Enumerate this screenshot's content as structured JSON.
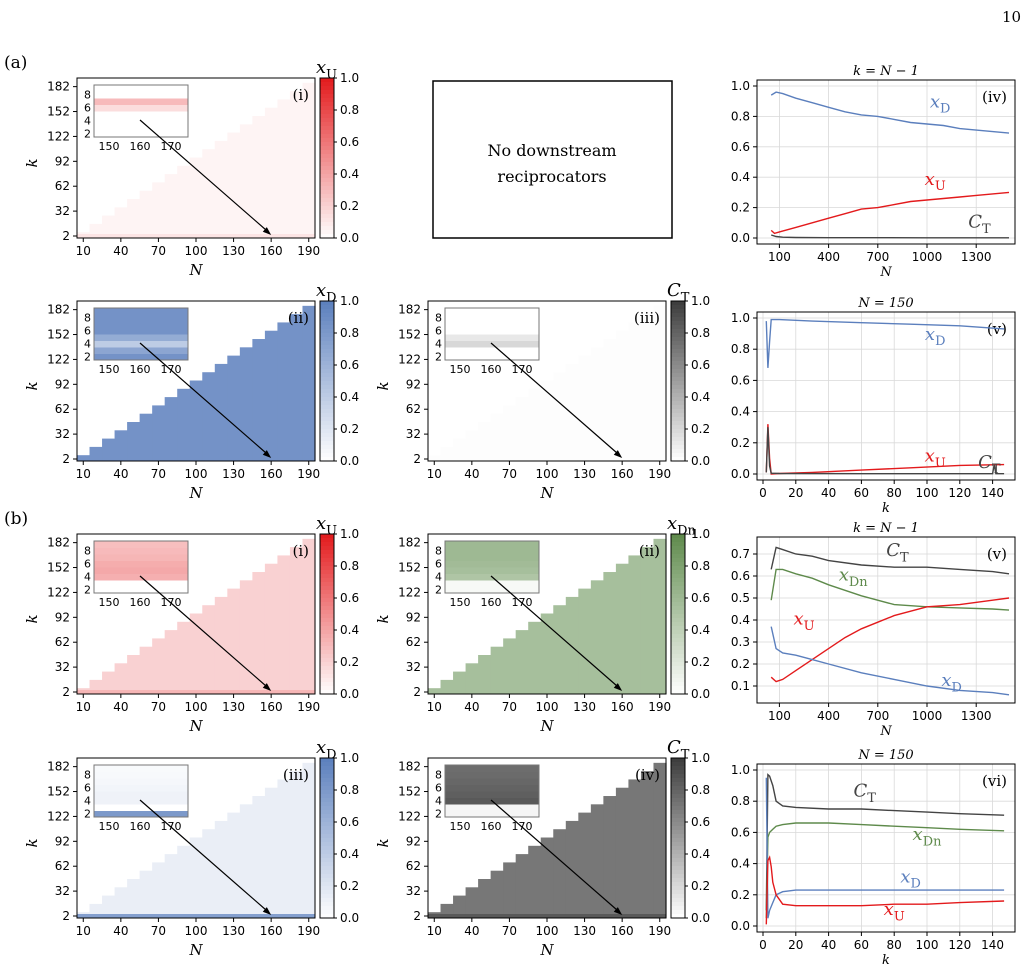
{
  "page_number": "10",
  "panel_a_label": "(a)",
  "panel_b_label": "(b)",
  "no_downstream_text_1": "No downstream",
  "no_downstream_text_2": "reciprocators",
  "colors": {
    "red": "#e31a1c",
    "blue": "#5b7fbd",
    "green": "#5e8a4b",
    "gray": "#444444",
    "black": "#000000"
  },
  "chart_data": [
    {
      "id": "a-i",
      "type": "heatmap",
      "tag": "(i)",
      "colorbar_label": "x_U",
      "cmap": "red",
      "heat": 0.05,
      "low_rows": [
        [
          2,
          0.12
        ]
      ],
      "ticks_x": [
        "10",
        "40",
        "70",
        "100",
        "130",
        "160",
        "190"
      ],
      "ticks_y": [
        "2",
        "32",
        "62",
        "92",
        "122",
        "152",
        "182"
      ],
      "xlabel": "N",
      "ylabel": "k",
      "cbar_ticks": [
        "0.0",
        "0.2",
        "0.4",
        "0.6",
        "0.8",
        "1.0"
      ],
      "inset": {
        "x_ticks": [
          "150",
          "160",
          "170"
        ],
        "y_ticks": [
          "2",
          "4",
          "6",
          "8"
        ],
        "rows": [
          0.0,
          0.0,
          0.0,
          0.0,
          0.15,
          0.3,
          0.0,
          0.0
        ]
      }
    },
    {
      "id": "a-ii",
      "type": "heatmap",
      "tag": "(ii)",
      "colorbar_label": "x_D",
      "cmap": "blue",
      "heat": 0.85,
      "low_rows": [],
      "ticks_x": [
        "10",
        "40",
        "70",
        "100",
        "130",
        "160",
        "190"
      ],
      "ticks_y": [
        "2",
        "32",
        "62",
        "92",
        "122",
        "152",
        "182"
      ],
      "xlabel": "N",
      "ylabel": "k",
      "cbar_ticks": [
        "0.0",
        "0.2",
        "0.4",
        "0.6",
        "0.8",
        "1.0"
      ],
      "inset": {
        "x_ticks": [
          "150",
          "160",
          "170"
        ],
        "y_ticks": [
          "2",
          "4",
          "6",
          "8"
        ],
        "rows": [
          0.85,
          0.7,
          0.4,
          0.65,
          0.85,
          0.85,
          0.85,
          0.85
        ]
      }
    },
    {
      "id": "a-iii",
      "type": "heatmap",
      "tag": "(iii)",
      "colorbar_label": "C_T",
      "cmap": "gray",
      "heat": 0.01,
      "low_rows": [],
      "ticks_x": [
        "10",
        "40",
        "70",
        "100",
        "130",
        "160",
        "190"
      ],
      "ticks_y": [
        "2",
        "32",
        "62",
        "92",
        "122",
        "152",
        "182"
      ],
      "xlabel": "N",
      "ylabel": "k",
      "cbar_ticks": [
        "0.0",
        "0.2",
        "0.4",
        "0.6",
        "0.8",
        "1.0"
      ],
      "inset": {
        "x_ticks": [
          "150",
          "160",
          "170"
        ],
        "y_ticks": [
          "2",
          "4",
          "6",
          "8"
        ],
        "rows": [
          0.0,
          0.0,
          0.2,
          0.12,
          0.0,
          0.0,
          0.0,
          0.0
        ]
      }
    },
    {
      "id": "a-iv",
      "type": "line",
      "tag": "(iv)",
      "title": "k = N − 1",
      "xlabel": "N",
      "ylabel": "",
      "xlim": [
        0,
        1500
      ],
      "ylim": [
        0,
        1
      ],
      "x_ticks": [
        100,
        400,
        700,
        1000,
        1300
      ],
      "y_ticks": [
        0.0,
        0.2,
        0.4,
        0.6,
        0.8,
        1.0
      ],
      "y_tick_labels": [
        "0.0",
        "0.2",
        "0.4",
        "0.6",
        "0.8",
        "1.0"
      ],
      "grid": true,
      "series": [
        {
          "name": "x_D",
          "color": "blue",
          "label_at": [
            1080,
            0.86
          ],
          "x": [
            50,
            80,
            120,
            200,
            300,
            400,
            500,
            600,
            700,
            800,
            900,
            1000,
            1100,
            1200,
            1300,
            1400,
            1500
          ],
          "y": [
            0.94,
            0.96,
            0.95,
            0.92,
            0.89,
            0.86,
            0.83,
            0.81,
            0.8,
            0.78,
            0.76,
            0.75,
            0.74,
            0.72,
            0.71,
            0.7,
            0.69
          ]
        },
        {
          "name": "x_U",
          "color": "red",
          "label_at": [
            1050,
            0.35
          ],
          "x": [
            50,
            70,
            100,
            200,
            300,
            400,
            500,
            600,
            700,
            800,
            900,
            1000,
            1100,
            1200,
            1300,
            1400,
            1500
          ],
          "y": [
            0.05,
            0.03,
            0.04,
            0.07,
            0.1,
            0.13,
            0.16,
            0.19,
            0.2,
            0.22,
            0.24,
            0.25,
            0.26,
            0.27,
            0.28,
            0.29,
            0.3
          ]
        },
        {
          "name": "C_T",
          "color": "gray",
          "label_at": [
            1320,
            0.07
          ],
          "x": [
            50,
            80,
            120,
            200,
            400,
            700,
            1000,
            1300,
            1500
          ],
          "y": [
            0.02,
            0.01,
            0.005,
            0.003,
            0.002,
            0.002,
            0.001,
            0.001,
            0.001
          ]
        }
      ]
    },
    {
      "id": "a-v",
      "type": "line",
      "tag": "(v)",
      "title": "N = 150",
      "xlabel": "k",
      "ylabel": "",
      "xlim": [
        0,
        150
      ],
      "ylim": [
        0,
        1
      ],
      "x_ticks": [
        0,
        20,
        40,
        60,
        80,
        100,
        120,
        140
      ],
      "y_ticks": [
        0.0,
        0.2,
        0.4,
        0.6,
        0.8,
        1.0
      ],
      "y_tick_labels": [
        "0.0",
        "0.2",
        "0.4",
        "0.6",
        "0.8",
        "1.0"
      ],
      "grid": true,
      "series": [
        {
          "name": "x_D",
          "color": "blue",
          "label_at": [
            105,
            0.86
          ],
          "x": [
            2,
            3,
            4,
            5,
            10,
            30,
            60,
            90,
            120,
            147
          ],
          "y": [
            0.98,
            0.68,
            0.85,
            0.99,
            0.99,
            0.98,
            0.97,
            0.96,
            0.95,
            0.93
          ]
        },
        {
          "name": "x_U",
          "color": "red",
          "label_at": [
            105,
            0.08
          ],
          "x": [
            2,
            3,
            4,
            5,
            10,
            30,
            60,
            90,
            120,
            147
          ],
          "y": [
            0.01,
            0.32,
            0.1,
            0.0,
            0.003,
            0.01,
            0.025,
            0.04,
            0.055,
            0.06
          ]
        },
        {
          "name": "C_T",
          "color": "gray",
          "label_at": [
            138,
            0.04
          ],
          "x": [
            2,
            3,
            4,
            5,
            10,
            60,
            120,
            140,
            141,
            142,
            147
          ],
          "y": [
            0.01,
            0.3,
            0.05,
            0.005,
            0.003,
            0.002,
            0.002,
            0.002,
            0.06,
            0.002,
            0.002
          ]
        }
      ]
    },
    {
      "id": "b-i",
      "type": "heatmap",
      "tag": "(i)",
      "colorbar_label": "x_U",
      "cmap": "red",
      "heat": 0.2,
      "low_rows": [
        [
          2,
          0.32
        ]
      ],
      "ticks_x": [
        "10",
        "40",
        "70",
        "100",
        "130",
        "160",
        "190"
      ],
      "ticks_y": [
        "2",
        "32",
        "62",
        "92",
        "122",
        "152",
        "182"
      ],
      "xlabel": "N",
      "ylabel": "k",
      "cbar_ticks": [
        "0.0",
        "0.2",
        "0.4",
        "0.6",
        "0.8",
        "1.0"
      ],
      "inset": {
        "x_ticks": [
          "150",
          "160",
          "170"
        ],
        "y_ticks": [
          "2",
          "4",
          "6",
          "8"
        ],
        "rows": [
          0.0,
          0.0,
          0.35,
          0.38,
          0.36,
          0.32,
          0.3,
          0.28
        ]
      }
    },
    {
      "id": "b-ii",
      "type": "heatmap",
      "tag": "(ii)",
      "colorbar_label": "x_Dn",
      "cmap": "green",
      "heat": 0.55,
      "low_rows": [],
      "ticks_x": [
        "10",
        "40",
        "70",
        "100",
        "130",
        "160",
        "190"
      ],
      "ticks_y": [
        "2",
        "32",
        "62",
        "92",
        "122",
        "152",
        "182"
      ],
      "xlabel": "N",
      "ylabel": "k",
      "cbar_ticks": [
        "0.0",
        "0.2",
        "0.4",
        "0.6",
        "0.8",
        "1.0"
      ],
      "inset": {
        "x_ticks": [
          "150",
          "160",
          "170"
        ],
        "y_ticks": [
          "2",
          "4",
          "6",
          "8"
        ],
        "rows": [
          0.05,
          0.05,
          0.5,
          0.55,
          0.58,
          0.6,
          0.6,
          0.6
        ]
      }
    },
    {
      "id": "a-iv-b",
      "type": "line",
      "tag": "(v)",
      "title": "k = N − 1",
      "xlabel": "N",
      "ylabel": "",
      "xlim": [
        0,
        1500
      ],
      "ylim": [
        0.05,
        0.75
      ],
      "x_ticks": [
        100,
        400,
        700,
        1000,
        1300
      ],
      "y_ticks": [
        0.1,
        0.2,
        0.3,
        0.4,
        0.5,
        0.6,
        0.7
      ],
      "y_tick_labels": [
        "0.1",
        "0.2",
        "0.3",
        "0.4",
        "0.5",
        "0.6",
        "0.7"
      ],
      "grid": true,
      "series": [
        {
          "name": "C_T",
          "color": "gray",
          "label_at": [
            820,
            0.69
          ],
          "x": [
            50,
            80,
            120,
            200,
            300,
            400,
            600,
            800,
            1000,
            1200,
            1400,
            1500
          ],
          "y": [
            0.63,
            0.73,
            0.72,
            0.7,
            0.69,
            0.67,
            0.65,
            0.64,
            0.64,
            0.63,
            0.62,
            0.61
          ]
        },
        {
          "name": "x_Dn",
          "color": "green",
          "label_at": [
            550,
            0.58
          ],
          "x": [
            50,
            80,
            120,
            200,
            300,
            400,
            600,
            800,
            1000,
            1200,
            1400,
            1500
          ],
          "y": [
            0.49,
            0.63,
            0.63,
            0.61,
            0.59,
            0.56,
            0.51,
            0.47,
            0.46,
            0.455,
            0.45,
            0.445
          ]
        },
        {
          "name": "x_U",
          "color": "red",
          "label_at": [
            250,
            0.38
          ],
          "x": [
            50,
            80,
            120,
            200,
            300,
            400,
            500,
            600,
            700,
            800,
            900,
            1000,
            1200,
            1400,
            1500
          ],
          "y": [
            0.14,
            0.12,
            0.13,
            0.17,
            0.22,
            0.27,
            0.32,
            0.36,
            0.39,
            0.42,
            0.44,
            0.46,
            0.47,
            0.49,
            0.5
          ]
        },
        {
          "name": "x_D",
          "color": "blue",
          "label_at": [
            1150,
            0.1
          ],
          "x": [
            50,
            80,
            120,
            200,
            300,
            400,
            600,
            800,
            1000,
            1200,
            1400,
            1500
          ],
          "y": [
            0.37,
            0.27,
            0.25,
            0.24,
            0.22,
            0.2,
            0.16,
            0.13,
            0.1,
            0.08,
            0.07,
            0.06
          ]
        }
      ]
    },
    {
      "id": "b-iii",
      "type": "heatmap",
      "tag": "(iii)",
      "colorbar_label": "x_D",
      "cmap": "blue",
      "heat": 0.13,
      "low_rows": [
        [
          2,
          0.75
        ]
      ],
      "ticks_x": [
        "10",
        "40",
        "70",
        "100",
        "130",
        "160",
        "190"
      ],
      "ticks_y": [
        "2",
        "32",
        "62",
        "92",
        "122",
        "152",
        "182"
      ],
      "xlabel": "N",
      "ylabel": "k",
      "cbar_ticks": [
        "0.0",
        "0.2",
        "0.4",
        "0.6",
        "0.8",
        "1.0"
      ],
      "inset": {
        "x_ticks": [
          "150",
          "160",
          "170"
        ],
        "y_ticks": [
          "2",
          "4",
          "6",
          "8"
        ],
        "rows": [
          0.8,
          0.0,
          0.1,
          0.1,
          0.08,
          0.06,
          0.05,
          0.04
        ]
      }
    },
    {
      "id": "b-iv",
      "type": "heatmap",
      "tag": "(iv)",
      "colorbar_label": "C_T",
      "cmap": "gray",
      "heat": 0.7,
      "low_rows": [
        [
          2,
          0.85
        ]
      ],
      "ticks_x": [
        "10",
        "40",
        "70",
        "100",
        "130",
        "160",
        "190"
      ],
      "ticks_y": [
        "2",
        "32",
        "62",
        "92",
        "122",
        "152",
        "182"
      ],
      "xlabel": "N",
      "ylabel": "k",
      "cbar_ticks": [
        "0.0",
        "0.2",
        "0.4",
        "0.6",
        "0.8",
        "1.0"
      ],
      "inset": {
        "x_ticks": [
          "150",
          "160",
          "170"
        ],
        "y_ticks": [
          "2",
          "4",
          "6",
          "8"
        ],
        "rows": [
          0.05,
          0.05,
          0.85,
          0.82,
          0.8,
          0.78,
          0.76,
          0.75
        ]
      }
    },
    {
      "id": "b-vi",
      "type": "line",
      "tag": "(vi)",
      "title": "N = 150",
      "xlabel": "k",
      "ylabel": "",
      "xlim": [
        0,
        150
      ],
      "ylim": [
        0,
        1
      ],
      "x_ticks": [
        0,
        20,
        40,
        60,
        80,
        100,
        120,
        140
      ],
      "y_ticks": [
        0.0,
        0.2,
        0.4,
        0.6,
        0.8,
        1.0
      ],
      "y_tick_labels": [
        "0.0",
        "0.2",
        "0.4",
        "0.6",
        "0.8",
        "1.0"
      ],
      "grid": true,
      "series": [
        {
          "name": "C_T",
          "color": "gray",
          "label_at": [
            62,
            0.83
          ],
          "x": [
            2,
            3,
            4,
            6,
            8,
            12,
            20,
            40,
            60,
            80,
            100,
            120,
            147
          ],
          "y": [
            0.1,
            0.97,
            0.96,
            0.9,
            0.8,
            0.77,
            0.76,
            0.75,
            0.75,
            0.74,
            0.73,
            0.72,
            0.71
          ]
        },
        {
          "name": "x_Dn",
          "color": "green",
          "label_at": [
            100,
            0.55
          ],
          "x": [
            2,
            3,
            4,
            6,
            8,
            12,
            20,
            40,
            60,
            80,
            100,
            120,
            147
          ],
          "y": [
            0.05,
            0.57,
            0.6,
            0.62,
            0.64,
            0.65,
            0.66,
            0.66,
            0.65,
            0.64,
            0.63,
            0.62,
            0.61
          ]
        },
        {
          "name": "x_D",
          "color": "blue",
          "label_at": [
            90,
            0.28
          ],
          "x": [
            2,
            3,
            4,
            6,
            8,
            12,
            20,
            40,
            60,
            80,
            100,
            120,
            147
          ],
          "y": [
            0.95,
            0.05,
            0.1,
            0.15,
            0.2,
            0.22,
            0.23,
            0.23,
            0.23,
            0.23,
            0.23,
            0.23,
            0.23
          ]
        },
        {
          "name": "x_U",
          "color": "red",
          "label_at": [
            80,
            0.07
          ],
          "x": [
            2,
            3,
            4,
            5,
            6,
            8,
            12,
            20,
            40,
            60,
            80,
            100,
            120,
            147
          ],
          "y": [
            0.01,
            0.42,
            0.44,
            0.38,
            0.28,
            0.2,
            0.14,
            0.13,
            0.13,
            0.13,
            0.14,
            0.14,
            0.15,
            0.16
          ]
        }
      ]
    }
  ]
}
